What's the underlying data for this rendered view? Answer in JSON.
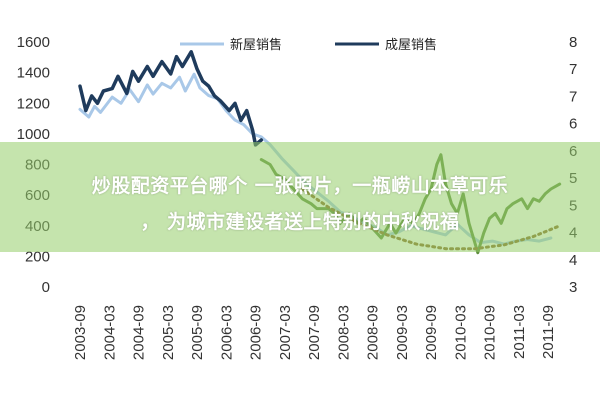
{
  "chart_data": {
    "type": "line",
    "title": "",
    "xlabel": "",
    "ylabel": "",
    "x_ticks": [
      "2003-09",
      "2004-03",
      "2004-09",
      "2005-03",
      "2005-09",
      "2006-03",
      "2006-09",
      "2007-03",
      "2007-09",
      "2008-03",
      "2008-09",
      "2009-03",
      "2009-09",
      "2010-03",
      "2010-09",
      "2011-03",
      "2011-09"
    ],
    "y_left_ticks": [
      "1600",
      "1400",
      "1200",
      "1000",
      "800",
      "600",
      "400",
      "200",
      "0"
    ],
    "y_right_ticks": [
      "8",
      "7",
      "7",
      "6",
      "6",
      "5",
      "5",
      "4",
      "4",
      "3"
    ],
    "ylim_left": [
      0,
      1600
    ],
    "ylim_right": [
      3,
      8
    ],
    "grid": false,
    "legend_position": "top",
    "series": [
      {
        "name": "新屋销售",
        "axis": "left",
        "color": "#a9c8e8",
        "values": [
          [
            2003.75,
            1160
          ],
          [
            2003.9,
            1110
          ],
          [
            2004.0,
            1180
          ],
          [
            2004.1,
            1140
          ],
          [
            2004.3,
            1240
          ],
          [
            2004.45,
            1200
          ],
          [
            2004.6,
            1290
          ],
          [
            2004.75,
            1210
          ],
          [
            2004.9,
            1320
          ],
          [
            2005.0,
            1260
          ],
          [
            2005.15,
            1330
          ],
          [
            2005.3,
            1300
          ],
          [
            2005.45,
            1370
          ],
          [
            2005.55,
            1280
          ],
          [
            2005.7,
            1390
          ],
          [
            2005.8,
            1300
          ],
          [
            2005.95,
            1250
          ],
          [
            2006.1,
            1230
          ],
          [
            2006.25,
            1150
          ],
          [
            2006.4,
            1090
          ],
          [
            2006.55,
            1060
          ],
          [
            2006.7,
            1000
          ],
          [
            2006.85,
            980
          ],
          [
            2007.0,
            930
          ],
          [
            2007.2,
            840
          ],
          [
            2007.4,
            760
          ],
          [
            2007.6,
            680
          ],
          [
            2007.8,
            620
          ],
          [
            2008.0,
            560
          ],
          [
            2008.2,
            490
          ],
          [
            2008.4,
            460
          ],
          [
            2008.6,
            420
          ],
          [
            2008.8,
            390
          ],
          [
            2009.0,
            340
          ],
          [
            2009.2,
            360
          ],
          [
            2009.4,
            400
          ],
          [
            2009.6,
            380
          ],
          [
            2009.8,
            360
          ],
          [
            2010.0,
            340
          ],
          [
            2010.2,
            410
          ],
          [
            2010.4,
            340
          ],
          [
            2010.6,
            290
          ],
          [
            2010.8,
            300
          ],
          [
            2011.0,
            280
          ],
          [
            2011.2,
            300
          ],
          [
            2011.4,
            310
          ],
          [
            2011.6,
            300
          ],
          [
            2011.8,
            320
          ]
        ]
      },
      {
        "name": "成屋销售",
        "axis": "right",
        "color": "#1f3b5c",
        "values": [
          [
            2003.75,
            7.1
          ],
          [
            2003.85,
            6.6
          ],
          [
            2003.95,
            6.9
          ],
          [
            2004.05,
            6.75
          ],
          [
            2004.15,
            7.0
          ],
          [
            2004.3,
            7.05
          ],
          [
            2004.4,
            7.3
          ],
          [
            2004.55,
            6.95
          ],
          [
            2004.65,
            7.4
          ],
          [
            2004.75,
            7.2
          ],
          [
            2004.9,
            7.5
          ],
          [
            2005.0,
            7.3
          ],
          [
            2005.15,
            7.6
          ],
          [
            2005.3,
            7.35
          ],
          [
            2005.4,
            7.7
          ],
          [
            2005.5,
            7.5
          ],
          [
            2005.65,
            7.8
          ],
          [
            2005.75,
            7.45
          ],
          [
            2005.85,
            7.2
          ],
          [
            2005.95,
            7.1
          ],
          [
            2006.05,
            6.9
          ],
          [
            2006.15,
            6.8
          ],
          [
            2006.3,
            6.6
          ],
          [
            2006.4,
            6.75
          ],
          [
            2006.5,
            6.4
          ],
          [
            2006.6,
            6.6
          ],
          [
            2006.7,
            6.2
          ],
          [
            2006.75,
            5.9
          ],
          [
            2006.85,
            6.0
          ]
        ]
      },
      {
        "name": "",
        "axis": "right",
        "color": "#5f8f3f",
        "values": [
          [
            2006.85,
            5.6
          ],
          [
            2007.0,
            5.5
          ],
          [
            2007.1,
            5.3
          ],
          [
            2007.25,
            5.2
          ],
          [
            2007.4,
            5.0
          ],
          [
            2007.55,
            4.8
          ],
          [
            2007.7,
            4.7
          ],
          [
            2007.8,
            4.6
          ],
          [
            2008.0,
            4.6
          ],
          [
            2008.1,
            4.5
          ],
          [
            2008.2,
            4.3
          ],
          [
            2008.35,
            4.5
          ],
          [
            2008.5,
            4.3
          ],
          [
            2008.6,
            4.4
          ],
          [
            2008.75,
            4.2
          ],
          [
            2008.9,
            4.0
          ],
          [
            2009.05,
            4.3
          ],
          [
            2009.15,
            4.1
          ],
          [
            2009.3,
            4.4
          ],
          [
            2009.45,
            4.3
          ],
          [
            2009.55,
            4.5
          ],
          [
            2009.65,
            4.8
          ],
          [
            2009.75,
            5.0
          ],
          [
            2009.85,
            5.5
          ],
          [
            2009.92,
            5.7
          ],
          [
            2010.0,
            5.1
          ],
          [
            2010.1,
            4.7
          ],
          [
            2010.2,
            4.5
          ],
          [
            2010.3,
            4.9
          ],
          [
            2010.4,
            4.3
          ],
          [
            2010.5,
            3.9
          ],
          [
            2010.55,
            3.7
          ],
          [
            2010.65,
            4.1
          ],
          [
            2010.75,
            4.4
          ],
          [
            2010.85,
            4.5
          ],
          [
            2010.95,
            4.3
          ],
          [
            2011.05,
            4.6
          ],
          [
            2011.15,
            4.7
          ],
          [
            2011.3,
            4.8
          ],
          [
            2011.4,
            4.6
          ],
          [
            2011.5,
            4.8
          ],
          [
            2011.6,
            4.75
          ],
          [
            2011.7,
            4.9
          ],
          [
            2011.8,
            5.0
          ],
          [
            2011.95,
            5.1
          ]
        ]
      },
      {
        "name": "",
        "axis": "left",
        "color": "#8a6a2a",
        "dashed": true,
        "values": [
          [
            2007.55,
            640
          ],
          [
            2008.0,
            520
          ],
          [
            2008.5,
            420
          ],
          [
            2009.0,
            340
          ],
          [
            2009.5,
            280
          ],
          [
            2010.0,
            250
          ],
          [
            2010.5,
            250
          ],
          [
            2011.0,
            275
          ],
          [
            2011.5,
            330
          ],
          [
            2011.95,
            400
          ]
        ]
      }
    ]
  },
  "overlay": {
    "line1": "炒股配资平台哪个 一张照片，一瓶崂山本草可乐",
    "line2": "， 为城市建设者送上特别的中秋祝福"
  }
}
